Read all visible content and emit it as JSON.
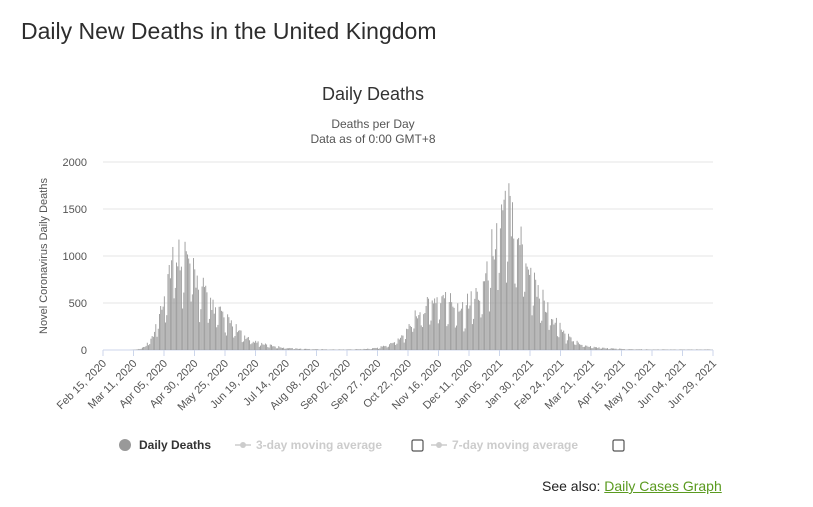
{
  "page": {
    "title": "Daily New Deaths in the United Kingdom",
    "see_also_label": "See also:",
    "see_also_link": "Daily Cases Graph"
  },
  "colors": {
    "bar": "#999999",
    "grid": "#e6e6e6",
    "axis": "#ccd6eb",
    "link": "#5a9a1f",
    "legend_disabled": "#cccccc"
  },
  "chart_data": {
    "type": "bar",
    "title": "Daily Deaths",
    "subtitle_lines": [
      "Deaths per Day",
      "Data as of 0:00 GMT+8"
    ],
    "ylabel": "Novel Coronavirus Daily Deaths",
    "xlabel": "",
    "ylim": [
      0,
      2000
    ],
    "yticks": [
      0,
      500,
      1000,
      1500,
      2000
    ],
    "x_start": "2020-02-15",
    "x_end": "2021-06-29",
    "categories": [
      "Feb 15, 2020",
      "Mar 11, 2020",
      "Apr 05, 2020",
      "Apr 30, 2020",
      "May 25, 2020",
      "Jun 19, 2020",
      "Jul 14, 2020",
      "Aug 08, 2020",
      "Sep 02, 2020",
      "Sep 27, 2020",
      "Oct 22, 2020",
      "Nov 16, 2020",
      "Dec 11, 2020",
      "Jan 05, 2021",
      "Jan 30, 2021",
      "Feb 24, 2021",
      "Mar 21, 2021",
      "Apr 15, 2021",
      "May 10, 2021",
      "Jun 04, 2021",
      "Jun 29, 2021"
    ],
    "series": [
      {
        "name": "Daily Deaths",
        "weekly_values": [
          0,
          0,
          0,
          0,
          5,
          40,
          180,
          520,
          900,
          1000,
          880,
          700,
          560,
          430,
          330,
          260,
          170,
          110,
          80,
          55,
          40,
          25,
          18,
          12,
          10,
          8,
          6,
          5,
          5,
          6,
          8,
          12,
          20,
          40,
          70,
          140,
          260,
          380,
          450,
          520,
          500,
          470,
          430,
          490,
          560,
          760,
          1150,
          1350,
          1400,
          1100,
          820,
          600,
          430,
          290,
          170,
          100,
          60,
          35,
          25,
          18,
          14,
          10,
          8,
          7,
          5,
          5,
          5,
          5,
          5,
          5,
          5
        ]
      }
    ],
    "legend": [
      {
        "label": "Daily Deaths",
        "enabled": true
      },
      {
        "label": "3-day moving average",
        "enabled": false
      },
      {
        "label": "7-day moving average",
        "enabled": false
      }
    ]
  }
}
